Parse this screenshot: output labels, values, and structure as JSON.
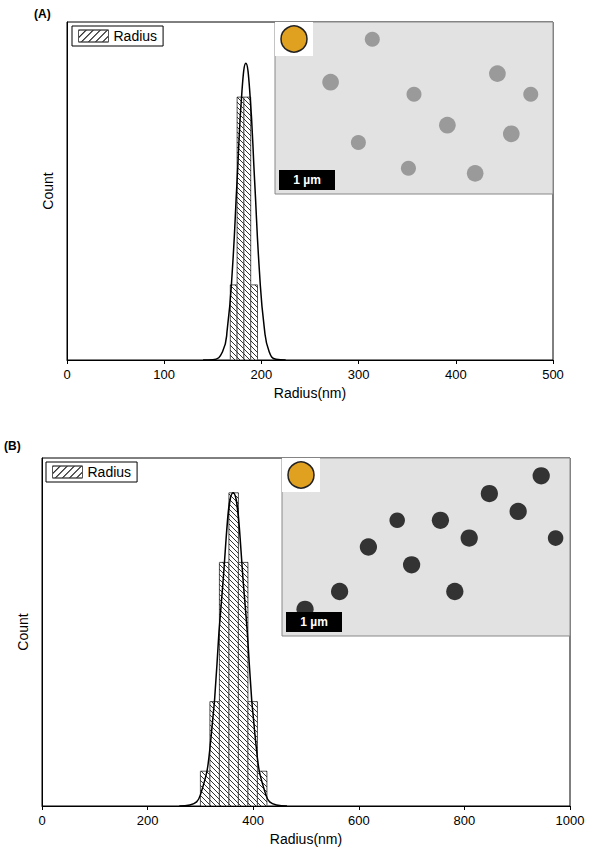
{
  "chart_data": [
    {
      "type": "histogram",
      "title": "(A)",
      "xlabel": "Radius(nm)",
      "ylabel": "Count",
      "xlim": [
        0,
        500
      ],
      "xticks": [
        0,
        100,
        200,
        300,
        400,
        500
      ],
      "ylim": [
        0,
        9
      ],
      "tick_labels": "x",
      "grid": false,
      "legend": "top-left",
      "annotations": [
        "1 µm"
      ],
      "series": [
        {
          "name": "Radius",
          "type": "histogram",
          "color": "#000000",
          "bins": [
            168,
            175,
            182,
            189,
            196
          ],
          "counts": [
            2,
            7,
            7,
            2
          ]
        },
        {
          "type": "line",
          "color": "#000000",
          "x": [
            140,
            150,
            160,
            165,
            170,
            175,
            180,
            184,
            188,
            193,
            198,
            203,
            208,
            215,
            225
          ],
          "values": [
            0,
            0.006,
            0.22,
            0.85,
            2.35,
            4.79,
            7.16,
            7.9,
            7.16,
            4.79,
            2.35,
            0.85,
            0.22,
            0.02,
            0
          ]
        }
      ]
    },
    {
      "type": "histogram",
      "title": "(B)",
      "xlabel": "Radius(nm)",
      "ylabel": "Count",
      "xlim": [
        0,
        1000
      ],
      "xticks": [
        0,
        200,
        400,
        600,
        800,
        1000
      ],
      "ylim": [
        0,
        10
      ],
      "tick_labels": "x",
      "grid": false,
      "legend": "top-left",
      "annotations": [
        "1 µm"
      ],
      "series": [
        {
          "name": "Radius",
          "type": "histogram",
          "color": "#000000",
          "bins": [
            300,
            318,
            336,
            354,
            372,
            390,
            408,
            426
          ],
          "counts": [
            1,
            3,
            7,
            9,
            7,
            3,
            1
          ]
        },
        {
          "type": "line",
          "color": "#000000",
          "x": [
            260,
            280,
            300,
            320,
            340,
            362,
            384,
            404,
            424,
            444,
            464
          ],
          "values": [
            0,
            0.03,
            0.32,
            1.95,
            5.91,
            9.0,
            5.91,
            1.95,
            0.32,
            0.03,
            0
          ]
        }
      ]
    }
  ]
}
